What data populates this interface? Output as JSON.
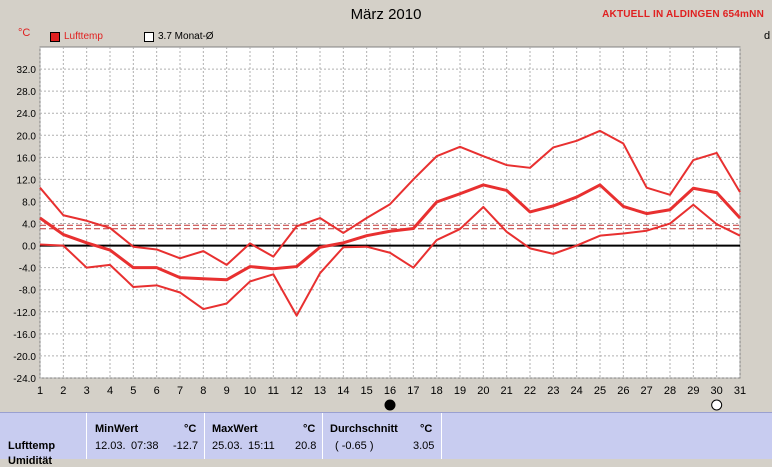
{
  "header": {
    "title": "März 2010",
    "unit": "°C",
    "status": "AKTUELL IN ALDINGEN 654mNN",
    "right_edge_char": "d"
  },
  "legend": [
    {
      "label": "Lufttemp",
      "color": "#e02020",
      "filled": true
    },
    {
      "label": "3.7 Monat-Ø",
      "color": "#000000",
      "filled": false
    }
  ],
  "colors": {
    "series": "#e83030",
    "reference": "#c03030",
    "zero_line": "#000000",
    "grid": "#b0b0b0"
  },
  "chart_data": {
    "type": "line",
    "title": "März 2010",
    "ylabel": "°C",
    "ylim": [
      -24,
      36
    ],
    "yticks": [
      "32.0",
      "28.0",
      "24.0",
      "20.0",
      "16.0",
      "12.0",
      "8.0",
      "4.0",
      "0.0",
      "-4.0",
      "-8.0",
      "-12.0",
      "-16.0",
      "-20.0",
      "-24.0"
    ],
    "x": [
      1,
      2,
      3,
      4,
      5,
      6,
      7,
      8,
      9,
      10,
      11,
      12,
      13,
      14,
      15,
      16,
      17,
      18,
      19,
      20,
      21,
      22,
      23,
      24,
      25,
      26,
      27,
      28,
      29,
      30,
      31
    ],
    "series": [
      {
        "name": "max",
        "values": [
          10.5,
          5.5,
          4.5,
          3.2,
          -0.2,
          -0.7,
          -2.3,
          -1.0,
          -3.5,
          0.4,
          -2.0,
          3.5,
          5.0,
          2.3,
          5.0,
          7.5,
          12.0,
          16.2,
          17.9,
          16.2,
          14.6,
          14.1,
          17.8,
          19.0,
          20.8,
          18.5,
          10.5,
          9.2,
          15.5,
          16.8,
          9.7
        ]
      },
      {
        "name": "avg",
        "values": [
          5.0,
          2.0,
          0.5,
          -0.8,
          -4.0,
          -4.0,
          -5.8,
          -6.0,
          -6.2,
          -3.8,
          -4.2,
          -3.8,
          -0.3,
          0.5,
          1.8,
          2.6,
          3.1,
          7.9,
          9.4,
          11.0,
          10.0,
          6.1,
          7.2,
          8.8,
          11.0,
          7.1,
          5.8,
          6.5,
          10.4,
          9.6,
          5.0
        ]
      },
      {
        "name": "min",
        "values": [
          0.2,
          0.0,
          -4.0,
          -3.5,
          -7.5,
          -7.2,
          -8.5,
          -11.5,
          -10.5,
          -6.5,
          -5.2,
          -12.7,
          -5.0,
          -0.3,
          -0.2,
          -1.3,
          -4.0,
          1.0,
          3.0,
          7.0,
          2.5,
          -0.5,
          -1.5,
          0.0,
          1.8,
          2.2,
          2.7,
          4.0,
          7.4,
          3.9,
          1.8
        ]
      }
    ],
    "reference_lines": [
      3.7,
      3.05
    ],
    "markers": [
      {
        "day": 16,
        "symbol": "new-moon"
      },
      {
        "day": 30,
        "symbol": "full-moon"
      }
    ],
    "grid": true
  },
  "stats": {
    "row_label": "Lufttemp",
    "row_label_2": "Umidität",
    "min": {
      "header": "MinWert",
      "unit": "°C",
      "date": "12.03.",
      "time": "07:38",
      "value": "-12.7"
    },
    "max": {
      "header": "MaxWert",
      "unit": "°C",
      "date": "25.03.",
      "time": "15:11",
      "value": "20.8"
    },
    "avg": {
      "header": "Durchschnitt",
      "unit": "°C",
      "extra": "( -0.65 )",
      "value": "3.05"
    }
  }
}
